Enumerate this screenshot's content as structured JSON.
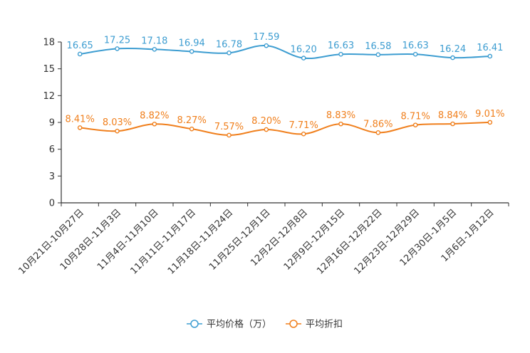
{
  "chart_data": {
    "type": "line",
    "title": "",
    "xlabel": "",
    "ylabel": "",
    "ylim": [
      0,
      18
    ],
    "yticks": [
      0,
      3,
      6,
      9,
      12,
      15,
      18
    ],
    "grid": false,
    "legend_position": "bottom",
    "categories": [
      "10月21日-10月27日",
      "10月28日-11月3日",
      "11月4日-11月10日",
      "11月11日-11月17日",
      "11月18日-11月24日",
      "11月25日-12月1日",
      "12月2日-12月8日",
      "12月9日-12月15日",
      "12月16日-12月22日",
      "12月23日-12月29日",
      "12月30日-1月5日",
      "1月6日-1月12日"
    ],
    "series": [
      {
        "name": "平均价格（万）",
        "color": "#3d9dd1",
        "values": [
          16.65,
          17.25,
          17.18,
          16.94,
          16.78,
          17.59,
          16.2,
          16.63,
          16.58,
          16.63,
          16.24,
          16.41
        ],
        "labels": [
          "16.65",
          "17.25",
          "17.18",
          "16.94",
          "16.78",
          "17.59",
          "16.20",
          "16.63",
          "16.58",
          "16.63",
          "16.24",
          "16.41"
        ]
      },
      {
        "name": "平均折扣",
        "color": "#f07f1c",
        "values": [
          8.41,
          8.03,
          8.82,
          8.27,
          7.57,
          8.2,
          7.71,
          8.83,
          7.86,
          8.71,
          8.84,
          9.01
        ],
        "labels": [
          "8.41%",
          "8.03%",
          "8.82%",
          "8.27%",
          "7.57%",
          "8.20%",
          "7.71%",
          "8.83%",
          "7.86%",
          "8.71%",
          "8.84%",
          "9.01%"
        ]
      }
    ]
  }
}
